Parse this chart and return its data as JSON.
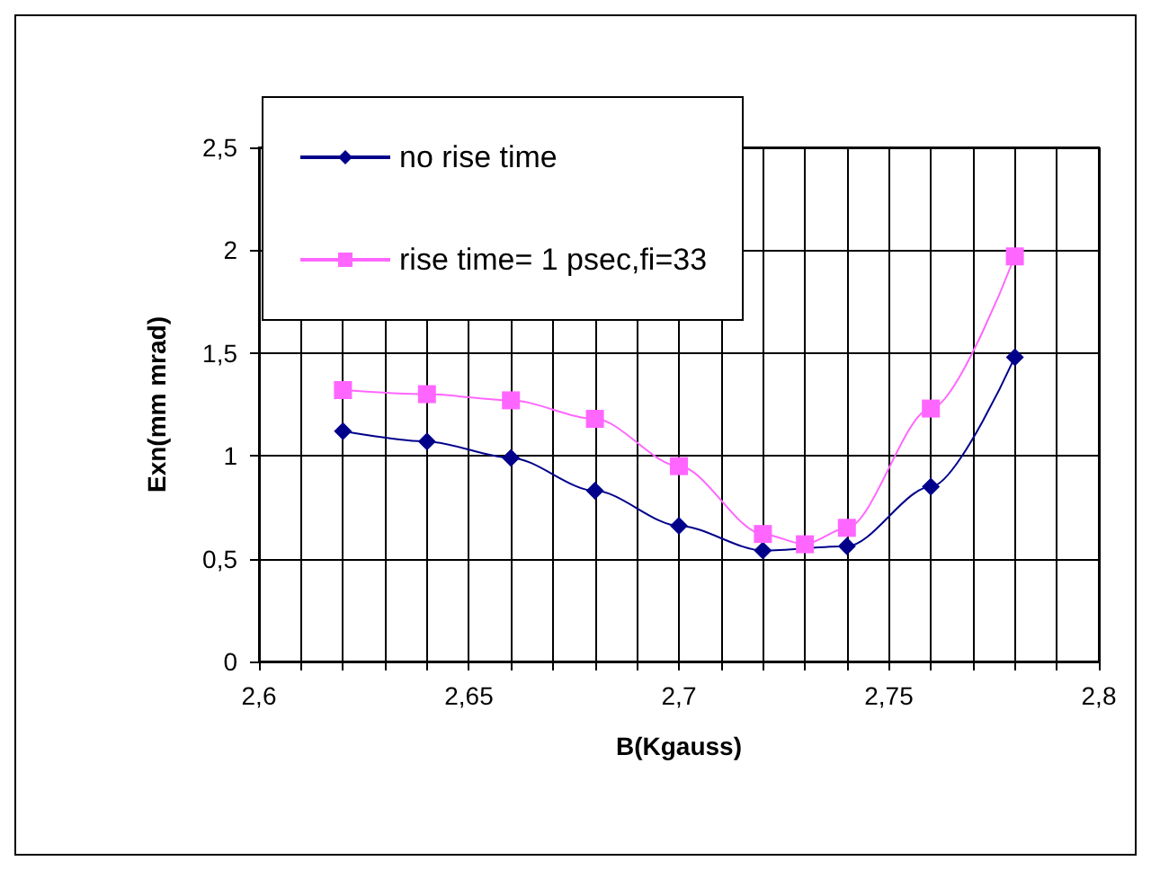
{
  "chart_data": {
    "type": "line",
    "xlabel": "B(Kgauss)",
    "ylabel": "Exn(mm mrad)",
    "series": [
      {
        "name": "no rise time",
        "color": "#00008b",
        "marker": "diamond",
        "x": [
          2.62,
          2.64,
          2.66,
          2.68,
          2.7,
          2.72,
          2.74,
          2.76,
          2.78
        ],
        "values": [
          1.12,
          1.07,
          0.99,
          0.83,
          0.66,
          0.54,
          0.56,
          0.85,
          1.48
        ]
      },
      {
        "name": "rise time= 1 psec,fi=33",
        "color": "#ff66ff",
        "marker": "square",
        "x": [
          2.62,
          2.64,
          2.66,
          2.68,
          2.7,
          2.72,
          2.73,
          2.74,
          2.76,
          2.78
        ],
        "values": [
          1.32,
          1.3,
          1.27,
          1.18,
          0.95,
          0.62,
          0.57,
          0.65,
          1.23,
          1.97
        ]
      }
    ],
    "xlim": [
      2.6,
      2.8
    ],
    "xticks": [
      {
        "value": 2.6,
        "label": "2,6"
      },
      {
        "value": 2.61,
        "label": null
      },
      {
        "value": 2.62,
        "label": null
      },
      {
        "value": 2.63,
        "label": null
      },
      {
        "value": 2.64,
        "label": null
      },
      {
        "value": 2.65,
        "label": "2,65"
      },
      {
        "value": 2.66,
        "label": null
      },
      {
        "value": 2.67,
        "label": null
      },
      {
        "value": 2.68,
        "label": null
      },
      {
        "value": 2.69,
        "label": null
      },
      {
        "value": 2.7,
        "label": "2,7"
      },
      {
        "value": 2.71,
        "label": null
      },
      {
        "value": 2.72,
        "label": null
      },
      {
        "value": 2.73,
        "label": null
      },
      {
        "value": 2.74,
        "label": null
      },
      {
        "value": 2.75,
        "label": "2,75"
      },
      {
        "value": 2.76,
        "label": null
      },
      {
        "value": 2.77,
        "label": null
      },
      {
        "value": 2.78,
        "label": null
      },
      {
        "value": 2.79,
        "label": null
      },
      {
        "value": 2.8,
        "label": "2,8"
      }
    ],
    "ylim": [
      0,
      2.5
    ],
    "yticks": [
      0,
      {
        "value": 0.5,
        "label": "0,5"
      },
      1,
      {
        "value": 1.5,
        "label": "1,5"
      },
      2,
      {
        "value": 2.5,
        "label": "2,5"
      }
    ],
    "grid": true,
    "legend": "top left"
  }
}
